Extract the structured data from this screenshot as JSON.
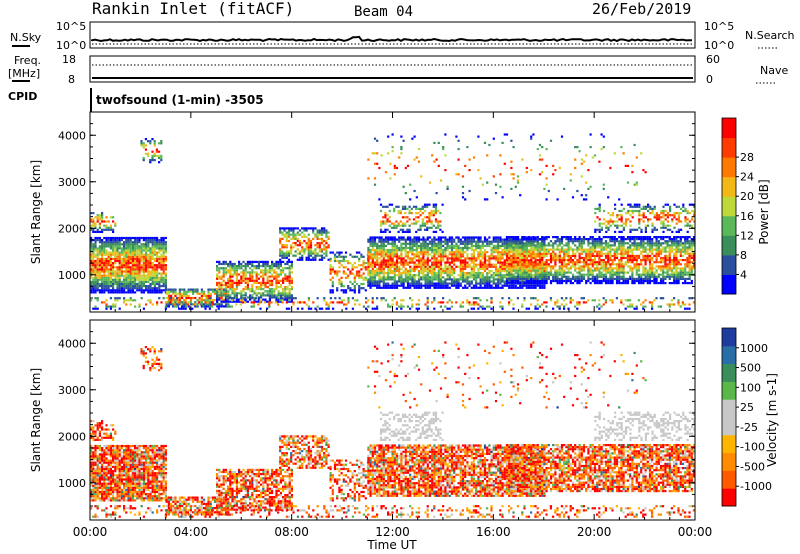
{
  "header": {
    "station": "Rankin Inlet (fitACF)",
    "beam": "Beam 04",
    "date": "26/Feb/2019"
  },
  "top_panels": {
    "nsky_label": "N.Sky",
    "nsky_tick_top": "10^5",
    "nsky_tick_bottom": "10^0",
    "nsearch_label": "N.Search",
    "freq_label_line1": "Freq.",
    "freq_label_line2": "[MHz]",
    "freq_tick_top": "18",
    "freq_tick_bottom": "8",
    "nave_label": "Nave",
    "nave_tick_top": "60",
    "nave_tick_bottom": "0",
    "cpid_label": "CPID",
    "cpid_text": "twofsound (1-min) -3505"
  },
  "colors": {
    "power": [
      "#0000ff",
      "#2a4f9e",
      "#3a8e5a",
      "#5ab85a",
      "#bfd83a",
      "#f2b818",
      "#ff7800",
      "#ff3c00",
      "#ff0000"
    ],
    "velocity": [
      "#ff0000",
      "#ff5a00",
      "#ff8c00",
      "#ffb400",
      "#c8c8c8",
      "#c8c8c8",
      "#5ab84a",
      "#3a8e5a",
      "#2a6ea8",
      "#1e3c9e"
    ]
  },
  "chart_data": [
    {
      "type": "heatmap",
      "name": "power",
      "ylabel": "Slant Range [km]",
      "y_ticks": [
        "1000",
        "2000",
        "3000",
        "4000"
      ],
      "ylim": [
        200,
        4500
      ],
      "colorbar_label": "Power [dB]",
      "colorbar_ticks": [
        "4",
        "8",
        "12",
        "16",
        "20",
        "24",
        "28"
      ],
      "clim": [
        0,
        32
      ]
    },
    {
      "type": "heatmap",
      "name": "velocity",
      "ylabel": "Slant Range [km]",
      "y_ticks": [
        "1000",
        "2000",
        "3000",
        "4000"
      ],
      "ylim": [
        200,
        4500
      ],
      "colorbar_label": "Velocity [m s-1]",
      "colorbar_ticks": [
        "1000",
        "500",
        "100",
        "25",
        "-25",
        "-100",
        "-500",
        "-1000"
      ]
    }
  ],
  "x_axis": {
    "ticks": [
      "00:00",
      "04:00",
      "08:00",
      "12:00",
      "16:00",
      "20:00",
      "00:00"
    ],
    "label": "Time UT"
  }
}
